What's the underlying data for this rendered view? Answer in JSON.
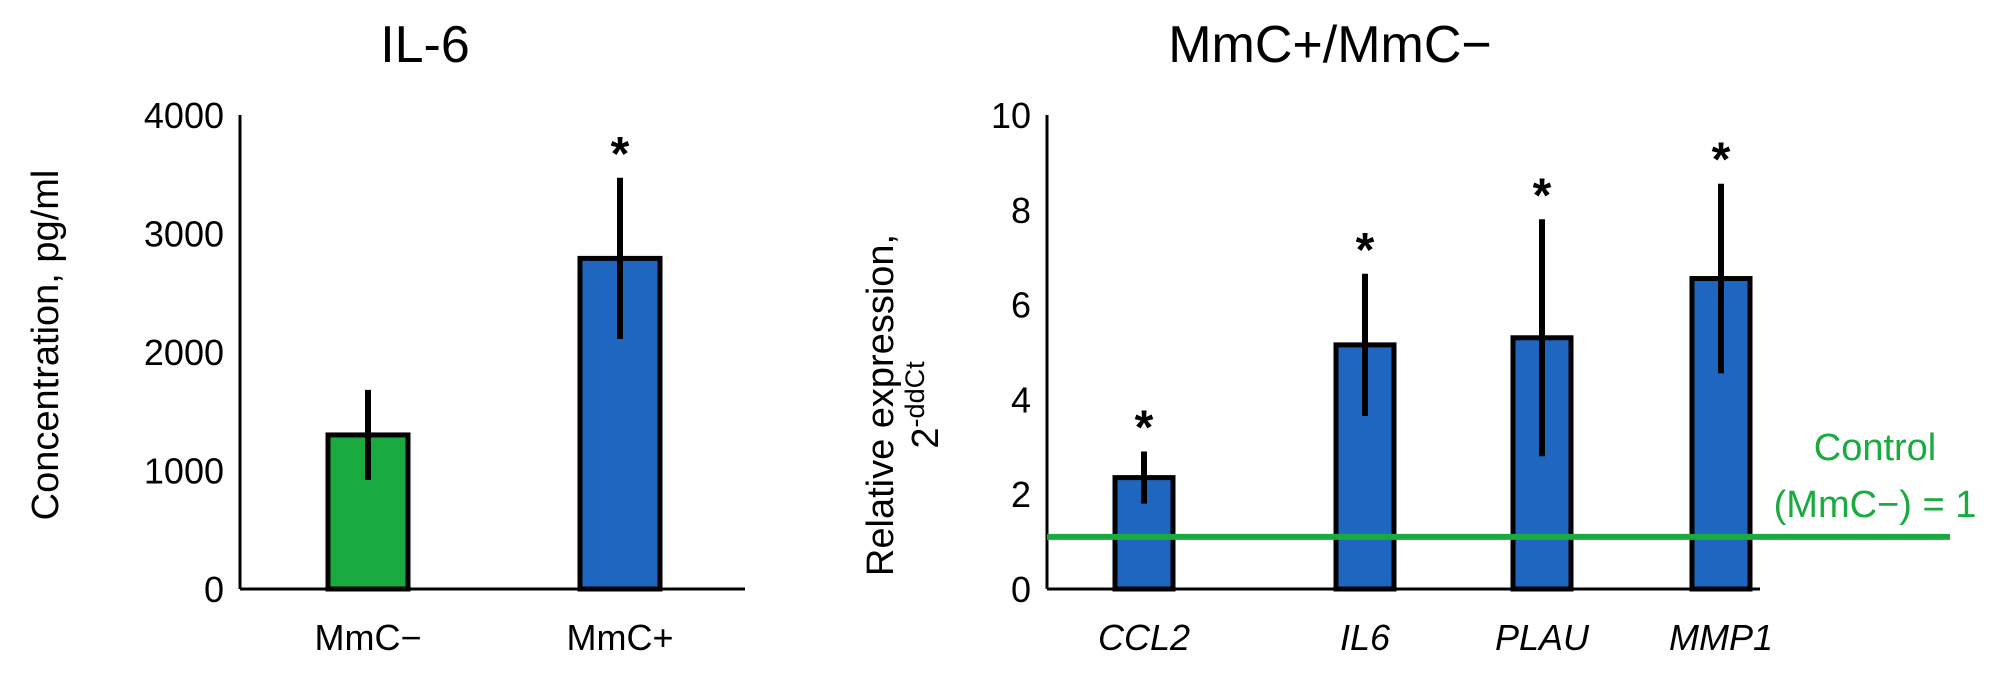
{
  "chart_data": [
    {
      "type": "bar",
      "title": "IL-6",
      "ylabel": "Concentration, pg/ml",
      "ylim": [
        0,
        4000
      ],
      "yticks": [
        0,
        1000,
        2000,
        3000,
        4000
      ],
      "categories": [
        "MmC−",
        "MmC+"
      ],
      "values": [
        1300,
        2790
      ],
      "errors": [
        380,
        680
      ],
      "colors": [
        "#19ab3f",
        "#1f66c1"
      ],
      "significance": [
        "",
        "*"
      ],
      "italic_categories": false
    },
    {
      "type": "bar",
      "title": "MmC+/MmC−",
      "ylabel": "Relative expression,",
      "ylabel_sub": "2",
      "ylabel_sup": "-ddCt",
      "ylim": [
        0,
        10
      ],
      "yticks": [
        0,
        2,
        4,
        6,
        8,
        10
      ],
      "categories": [
        "CCL2",
        "IL6",
        "PLAU",
        "MMP1"
      ],
      "values": [
        2.35,
        5.15,
        5.3,
        6.55
      ],
      "errors": [
        0.55,
        1.5,
        2.5,
        2.0
      ],
      "colors": [
        "#1f66c1",
        "#1f66c1",
        "#1f66c1",
        "#1f66c1"
      ],
      "significance": [
        "*",
        "*",
        "*",
        "*"
      ],
      "italic_categories": true,
      "reference_line": {
        "value": 1.1,
        "color": "#19ab3f",
        "label_line1": "Control",
        "label_line2": "(MmC−) = 1"
      }
    }
  ]
}
